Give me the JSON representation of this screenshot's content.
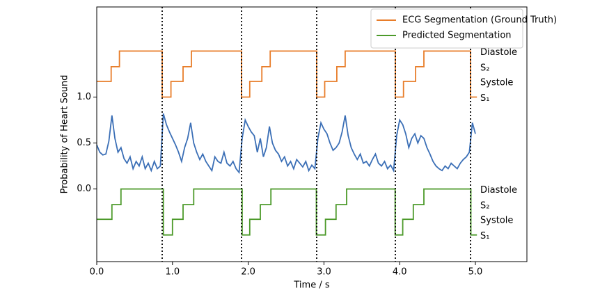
{
  "chart_data": {
    "type": "line",
    "xlabel": "Time / s",
    "ylabel": "Probability of Heart Sound",
    "xlim": [
      0,
      5.68
    ],
    "ylim": [
      -0.79,
      1.98
    ],
    "xticks": [
      {
        "value": 0,
        "label": "0.0"
      },
      {
        "value": 1,
        "label": "1.0"
      },
      {
        "value": 2,
        "label": "2.0"
      },
      {
        "value": 3,
        "label": "3.0"
      },
      {
        "value": 4,
        "label": "4.0"
      },
      {
        "value": 5,
        "label": "5.0"
      }
    ],
    "yticks": [
      {
        "value": 0,
        "label": "0.0"
      },
      0.5,
      {
        "value": 1,
        "label": "1.0"
      }
    ],
    "legend": "upper right",
    "vlines": [
      0.864,
      1.912,
      2.904,
      3.943,
      4.936
    ],
    "vline_color": "#000000",
    "series": [
      {
        "name": "ECG Segmentation (Ground Truth)",
        "color": "#e87d2a",
        "x": [
          0,
          0.19,
          0.19,
          0.3,
          0.3,
          0.864,
          0.864,
          0.98,
          0.98,
          1.14,
          1.14,
          1.25,
          1.25,
          1.912,
          1.912,
          2.02,
          2.02,
          2.18,
          2.18,
          2.29,
          2.29,
          2.904,
          2.904,
          3.01,
          3.01,
          3.17,
          3.17,
          3.28,
          3.28,
          3.943,
          3.943,
          4.05,
          4.05,
          4.21,
          4.21,
          4.32,
          4.32,
          4.936,
          4.936,
          5.02
        ],
        "values": [
          1.17,
          1.17,
          1.33,
          1.33,
          1.5,
          1.5,
          1.0,
          1.0,
          1.17,
          1.17,
          1.33,
          1.33,
          1.5,
          1.5,
          1.0,
          1.0,
          1.17,
          1.17,
          1.33,
          1.33,
          1.5,
          1.5,
          1.0,
          1.0,
          1.17,
          1.17,
          1.33,
          1.33,
          1.5,
          1.5,
          1.0,
          1.0,
          1.17,
          1.17,
          1.33,
          1.33,
          1.5,
          1.5,
          1.0,
          1.0
        ]
      },
      {
        "name": "Predicted Segmentation",
        "color": "#4c9a2a",
        "x": [
          0,
          0.2,
          0.2,
          0.32,
          0.32,
          0.88,
          0.88,
          1.0,
          1.0,
          1.14,
          1.14,
          1.28,
          1.28,
          1.92,
          1.92,
          2.02,
          2.02,
          2.16,
          2.16,
          2.3,
          2.3,
          2.9,
          2.9,
          3.02,
          3.02,
          3.16,
          3.16,
          3.3,
          3.3,
          3.94,
          3.94,
          4.04,
          4.04,
          4.18,
          4.18,
          4.32,
          4.32,
          4.94,
          4.94,
          5.02
        ],
        "values": [
          -0.33,
          -0.33,
          -0.17,
          -0.17,
          0,
          0,
          -0.5,
          -0.5,
          -0.33,
          -0.33,
          -0.17,
          -0.17,
          0,
          0,
          -0.5,
          -0.5,
          -0.33,
          -0.33,
          -0.17,
          -0.17,
          0,
          0,
          -0.5,
          -0.5,
          -0.33,
          -0.33,
          -0.17,
          -0.17,
          0,
          0,
          -0.5,
          -0.5,
          -0.33,
          -0.33,
          -0.17,
          -0.17,
          0,
          0,
          -0.5,
          -0.5
        ]
      },
      {
        "color": "#3b6fb6",
        "x": [
          0,
          0.04,
          0.08,
          0.12,
          0.16,
          0.2,
          0.24,
          0.28,
          0.32,
          0.36,
          0.4,
          0.44,
          0.48,
          0.52,
          0.56,
          0.6,
          0.64,
          0.68,
          0.72,
          0.76,
          0.8,
          0.84,
          0.88,
          0.92,
          0.96,
          1,
          1.04,
          1.08,
          1.12,
          1.16,
          1.2,
          1.24,
          1.28,
          1.32,
          1.36,
          1.4,
          1.44,
          1.48,
          1.52,
          1.56,
          1.6,
          1.64,
          1.68,
          1.72,
          1.76,
          1.8,
          1.84,
          1.88,
          1.92,
          1.96,
          2,
          2.04,
          2.08,
          2.12,
          2.16,
          2.2,
          2.24,
          2.28,
          2.32,
          2.36,
          2.4,
          2.44,
          2.48,
          2.52,
          2.56,
          2.6,
          2.64,
          2.68,
          2.72,
          2.76,
          2.8,
          2.84,
          2.88,
          2.92,
          2.96,
          3,
          3.04,
          3.08,
          3.12,
          3.16,
          3.2,
          3.24,
          3.28,
          3.32,
          3.36,
          3.4,
          3.44,
          3.48,
          3.52,
          3.56,
          3.6,
          3.64,
          3.68,
          3.72,
          3.76,
          3.8,
          3.84,
          3.88,
          3.92,
          3.96,
          4,
          4.04,
          4.08,
          4.12,
          4.16,
          4.2,
          4.24,
          4.28,
          4.32,
          4.36,
          4.4,
          4.44,
          4.48,
          4.52,
          4.56,
          4.6,
          4.64,
          4.68,
          4.72,
          4.76,
          4.8,
          4.84,
          4.88,
          4.92,
          4.96,
          5
        ],
        "values": [
          0.48,
          0.4,
          0.37,
          0.38,
          0.52,
          0.8,
          0.55,
          0.4,
          0.45,
          0.33,
          0.28,
          0.35,
          0.22,
          0.3,
          0.25,
          0.35,
          0.22,
          0.28,
          0.2,
          0.3,
          0.22,
          0.25,
          0.82,
          0.7,
          0.62,
          0.55,
          0.48,
          0.4,
          0.3,
          0.45,
          0.55,
          0.72,
          0.5,
          0.4,
          0.32,
          0.38,
          0.3,
          0.25,
          0.2,
          0.35,
          0.3,
          0.28,
          0.4,
          0.28,
          0.25,
          0.3,
          0.22,
          0.18,
          0.55,
          0.75,
          0.68,
          0.62,
          0.58,
          0.4,
          0.55,
          0.35,
          0.45,
          0.68,
          0.5,
          0.42,
          0.38,
          0.3,
          0.35,
          0.25,
          0.3,
          0.22,
          0.32,
          0.28,
          0.24,
          0.3,
          0.2,
          0.26,
          0.22,
          0.55,
          0.72,
          0.65,
          0.6,
          0.5,
          0.42,
          0.45,
          0.5,
          0.62,
          0.8,
          0.58,
          0.45,
          0.38,
          0.32,
          0.38,
          0.28,
          0.3,
          0.25,
          0.32,
          0.38,
          0.28,
          0.25,
          0.3,
          0.22,
          0.26,
          0.2,
          0.58,
          0.75,
          0.7,
          0.6,
          0.45,
          0.55,
          0.6,
          0.5,
          0.58,
          0.55,
          0.45,
          0.38,
          0.3,
          0.25,
          0.22,
          0.2,
          0.25,
          0.22,
          0.28,
          0.25,
          0.22,
          0.28,
          0.32,
          0.35,
          0.4,
          0.72,
          0.6
        ]
      }
    ],
    "annotations": [
      {
        "text": "Diastole",
        "y": 1.5
      },
      {
        "text": "S₂",
        "y": 1.33
      },
      {
        "text": "Systole",
        "y": 1.17
      },
      {
        "text": "S₁",
        "y": 1.0
      },
      {
        "text": "Diastole",
        "y": 0
      },
      {
        "text": "S₂",
        "y": -0.17
      },
      {
        "text": "Systole",
        "y": -0.33
      },
      {
        "text": "S₁",
        "y": -0.5
      }
    ]
  }
}
